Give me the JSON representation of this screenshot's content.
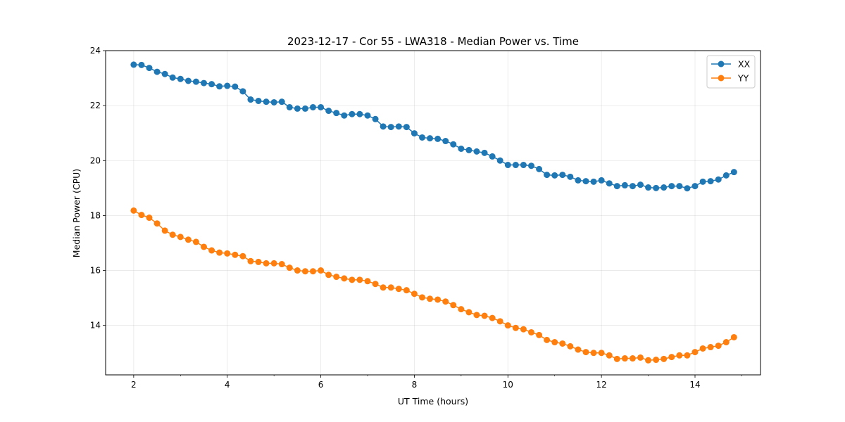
{
  "chart_data": {
    "type": "line",
    "title": "2023-12-17 - Cor 55 - LWA318 - Median Power vs. Time",
    "xlabel": "UT Time (hours)",
    "ylabel": "Median Power (CPU)",
    "xlim": [
      1.4,
      15.4
    ],
    "ylim": [
      12.2,
      24.0
    ],
    "xticks": [
      2,
      4,
      6,
      8,
      10,
      12,
      14
    ],
    "xtick_labels": [
      "2",
      "4",
      "6",
      "8",
      "10",
      "12",
      "14"
    ],
    "yticks": [
      14,
      16,
      18,
      20,
      22,
      24
    ],
    "ytick_labels": [
      "14",
      "16",
      "18",
      "20",
      "22",
      "24"
    ],
    "grid": true,
    "legend_position": "top-right",
    "x": [
      2.0,
      2.167,
      2.333,
      2.5,
      2.667,
      2.833,
      3.0,
      3.167,
      3.333,
      3.5,
      3.667,
      3.833,
      4.0,
      4.167,
      4.333,
      4.5,
      4.667,
      4.833,
      5.0,
      5.167,
      5.333,
      5.5,
      5.667,
      5.833,
      6.0,
      6.167,
      6.333,
      6.5,
      6.667,
      6.833,
      7.0,
      7.167,
      7.333,
      7.5,
      7.667,
      7.833,
      8.0,
      8.167,
      8.333,
      8.5,
      8.667,
      8.833,
      9.0,
      9.167,
      9.333,
      9.5,
      9.667,
      9.833,
      10.0,
      10.167,
      10.333,
      10.5,
      10.667,
      10.833,
      11.0,
      11.167,
      11.333,
      11.5,
      11.667,
      11.833,
      12.0,
      12.167,
      12.333,
      12.5,
      12.667,
      12.833,
      13.0,
      13.167,
      13.333,
      13.5,
      13.667,
      13.833,
      14.0,
      14.167,
      14.333,
      14.5,
      14.667,
      14.833
    ],
    "series": [
      {
        "name": "XX",
        "color": "#1f77b4",
        "values": [
          23.49,
          23.48,
          23.37,
          23.23,
          23.15,
          23.02,
          22.97,
          22.9,
          22.87,
          22.82,
          22.78,
          22.7,
          22.72,
          22.69,
          22.52,
          22.22,
          22.17,
          22.14,
          22.12,
          22.14,
          21.94,
          21.89,
          21.89,
          21.94,
          21.94,
          21.81,
          21.73,
          21.64,
          21.69,
          21.69,
          21.64,
          21.51,
          21.24,
          21.22,
          21.24,
          21.22,
          20.99,
          20.84,
          20.81,
          20.79,
          20.71,
          20.59,
          20.43,
          20.38,
          20.33,
          20.28,
          20.15,
          20.0,
          19.84,
          19.84,
          19.84,
          19.81,
          19.69,
          19.48,
          19.46,
          19.48,
          19.41,
          19.28,
          19.25,
          19.23,
          19.28,
          19.17,
          19.07,
          19.1,
          19.07,
          19.12,
          19.02,
          19.0,
          19.02,
          19.07,
          19.07,
          18.99,
          19.07,
          19.23,
          19.25,
          19.31,
          19.46,
          19.58
        ]
      },
      {
        "name": "YY",
        "color": "#ff7f0e",
        "values": [
          18.18,
          18.02,
          17.92,
          17.71,
          17.45,
          17.3,
          17.22,
          17.12,
          17.04,
          16.86,
          16.73,
          16.65,
          16.62,
          16.57,
          16.52,
          16.34,
          16.31,
          16.26,
          16.26,
          16.23,
          16.1,
          16.0,
          15.97,
          15.97,
          16.0,
          15.84,
          15.77,
          15.71,
          15.66,
          15.66,
          15.61,
          15.51,
          15.38,
          15.38,
          15.33,
          15.28,
          15.15,
          15.02,
          14.97,
          14.94,
          14.87,
          14.74,
          14.59,
          14.48,
          14.38,
          14.35,
          14.27,
          14.15,
          14.0,
          13.91,
          13.86,
          13.75,
          13.65,
          13.47,
          13.39,
          13.34,
          13.24,
          13.12,
          13.03,
          13.0,
          13.0,
          12.91,
          12.78,
          12.8,
          12.8,
          12.83,
          12.73,
          12.75,
          12.78,
          12.85,
          12.91,
          12.91,
          13.03,
          13.16,
          13.21,
          13.26,
          13.39,
          13.57
        ]
      }
    ]
  }
}
